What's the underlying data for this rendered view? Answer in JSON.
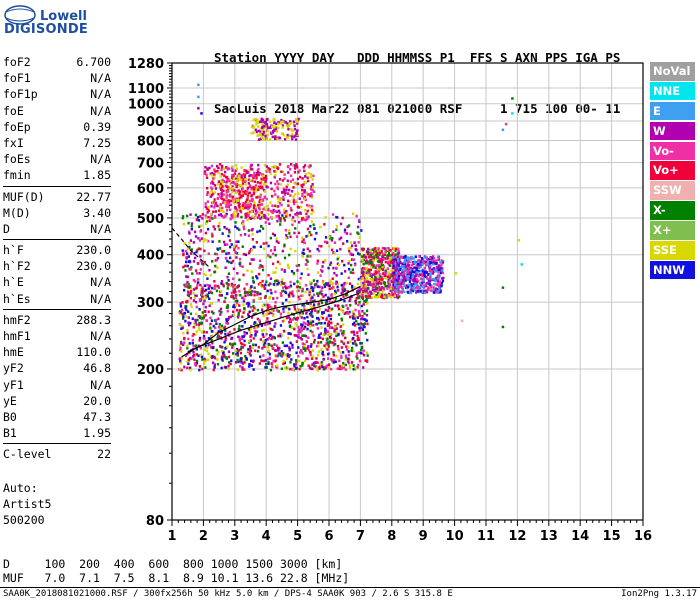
{
  "logo": {
    "line1": "Lowell",
    "line2": "DIGISONDE"
  },
  "header": {
    "row1": "Station YYYY DAY   DDD HHMMSS P1  FFS S AXN PPS IGA PS",
    "row2": "SaoLuis 2018 Mar22 081 021000 RSF     1 715 100 00- 11"
  },
  "params": [
    [
      {
        "name": "foF2",
        "value": "6.700"
      },
      {
        "name": "foF1",
        "value": "N/A"
      },
      {
        "name": "foF1p",
        "value": "N/A"
      },
      {
        "name": "foE",
        "value": "N/A"
      },
      {
        "name": "foEp",
        "value": "0.39"
      },
      {
        "name": "fxI",
        "value": "7.25"
      },
      {
        "name": "foEs",
        "value": "N/A"
      },
      {
        "name": "fmin",
        "value": "1.85"
      }
    ],
    [
      {
        "name": "MUF(D)",
        "value": "22.77"
      },
      {
        "name": "M(D)",
        "value": "3.40"
      },
      {
        "name": "D",
        "value": "N/A"
      }
    ],
    [
      {
        "name": "h`F",
        "value": "230.0"
      },
      {
        "name": "h`F2",
        "value": "230.0"
      },
      {
        "name": "h`E",
        "value": "N/A"
      },
      {
        "name": "h`Es",
        "value": "N/A"
      }
    ],
    [
      {
        "name": "hmF2",
        "value": "288.3"
      },
      {
        "name": "hmF1",
        "value": "N/A"
      },
      {
        "name": "hmE",
        "value": "110.0"
      },
      {
        "name": "yF2",
        "value": "46.8"
      },
      {
        "name": "yF1",
        "value": "N/A"
      },
      {
        "name": "yE",
        "value": "20.0"
      },
      {
        "name": "B0",
        "value": "47.3"
      },
      {
        "name": "B1",
        "value": "1.95"
      }
    ],
    [
      {
        "name": "C-level",
        "value": "22"
      }
    ]
  ],
  "auto": {
    "l1": "Auto:",
    "l2": "Artist5",
    "l3": "500200"
  },
  "legend": [
    {
      "label": "NoVal",
      "color": "#a0a0a0"
    },
    {
      "label": "NNE",
      "color": "#00e6ef"
    },
    {
      "label": "E",
      "color": "#3f9ff0"
    },
    {
      "label": "W",
      "color": "#b000b0"
    },
    {
      "label": "Vo-",
      "color": "#ef2fa6"
    },
    {
      "label": "Vo+",
      "color": "#f0003a"
    },
    {
      "label": "SSW",
      "color": "#f0b0b0"
    },
    {
      "label": "X-",
      "color": "#008000"
    },
    {
      "label": "X+",
      "color": "#7fbf4f"
    },
    {
      "label": "SSE",
      "color": "#d8d800"
    },
    {
      "label": "NNW",
      "color": "#1010e0"
    }
  ],
  "footer": {
    "drow": "D     100  200  400  600  800 1000 1500 3000 [km]",
    "mufrow": "MUF   7.0  7.1  7.5  8.1  8.9 10.1 13.6 22.8 [MHz]",
    "source": "SAA0K_2018081021000.RSF / 300fx256h 50 kHz 5.0 km / DPS-4 SAA0K 903 / 2.6 S 315.8 E",
    "version": "Ion2Png 1.3.17"
  },
  "chart_data": {
    "type": "scatter",
    "title": "",
    "xlabel": "",
    "ylabel": "",
    "xscale": "linear",
    "yscale": "log",
    "xlim": [
      1,
      16
    ],
    "ylim": [
      80,
      1280
    ],
    "xticks": [
      1,
      2,
      3,
      4,
      5,
      6,
      7,
      8,
      9,
      10,
      11,
      12,
      13,
      14,
      15,
      16
    ],
    "yticks": [
      80,
      200,
      300,
      400,
      500,
      600,
      700,
      800,
      900,
      1000,
      1100,
      1280
    ],
    "grid": true,
    "legend_position": "right",
    "traces": [
      {
        "x": [
          1.3,
          1.8,
          2.5,
          3.2,
          4.0,
          4.8,
          5.6,
          6.4,
          7.0
        ],
        "y": [
          215,
          228,
          240,
          253,
          265,
          278,
          290,
          304,
          318
        ]
      },
      {
        "x": [
          1.5,
          2.0,
          2.5,
          3.0,
          3.5,
          4.0,
          4.5,
          5.0,
          5.5,
          6.0,
          6.5,
          7.0
        ],
        "y": [
          222,
          232,
          250,
          262,
          275,
          285,
          292,
          296,
          300,
          305,
          315,
          330
        ]
      },
      {
        "x": [
          1.0,
          1.3,
          1.6,
          1.9,
          2.2
        ],
        "y": [
          470,
          440,
          410,
          390,
          370
        ]
      }
    ],
    "echo_regions": [
      {
        "x": [
          1.2,
          7.2
        ],
        "y": [
          200,
          340
        ],
        "density": "high",
        "colors": [
          "#f0003a",
          "#d8d800",
          "#b000b0",
          "#ef2fa6",
          "#008000",
          "#1010e0"
        ]
      },
      {
        "x": [
          1.3,
          7.0
        ],
        "y": [
          330,
          520
        ],
        "density": "medium",
        "colors": [
          "#b000b0",
          "#d8d800",
          "#f0003a",
          "#008000",
          "#ef2fa6",
          "#1010e0"
        ]
      },
      {
        "x": [
          2.0,
          5.5
        ],
        "y": [
          500,
          700
        ],
        "density": "medium",
        "colors": [
          "#b000b0",
          "#ef2fa6",
          "#f0003a",
          "#d8d800"
        ]
      },
      {
        "x": [
          7.0,
          8.2
        ],
        "y": [
          310,
          420
        ],
        "density": "medium",
        "colors": [
          "#b000b0",
          "#f0003a",
          "#ef2fa6",
          "#d8d800",
          "#008000"
        ]
      },
      {
        "x": [
          8.0,
          9.6
        ],
        "y": [
          320,
          400
        ],
        "density": "medium",
        "colors": [
          "#b000b0",
          "#ef2fa6",
          "#1010e0",
          "#3f9ff0"
        ]
      },
      {
        "x": [
          3.5,
          5.0
        ],
        "y": [
          810,
          920
        ],
        "density": "low",
        "colors": [
          "#d8d800",
          "#b000b0"
        ]
      },
      {
        "x": [
          2.5,
          4.0
        ],
        "y": [
          520,
          660
        ],
        "density": "low",
        "colors": [
          "#f0003a",
          "#ef2fa6",
          "#d8d800"
        ]
      }
    ],
    "isolated_points": [
      {
        "x": 11.5,
        "y": 860,
        "color": "#3f9ff0"
      },
      {
        "x": 11.8,
        "y": 1040,
        "color": "#008000"
      },
      {
        "x": 11.8,
        "y": 950,
        "color": "#00e6ef"
      },
      {
        "x": 11.6,
        "y": 890,
        "color": "#ef2fa6"
      },
      {
        "x": 11.5,
        "y": 330,
        "color": "#008000"
      },
      {
        "x": 11.5,
        "y": 260,
        "color": "#008000"
      },
      {
        "x": 12.1,
        "y": 380,
        "color": "#00e6ef"
      },
      {
        "x": 12.0,
        "y": 440,
        "color": "#d8d800"
      },
      {
        "x": 1.8,
        "y": 1130,
        "color": "#3f9ff0"
      },
      {
        "x": 1.8,
        "y": 1050,
        "color": "#3f9ff0"
      },
      {
        "x": 1.8,
        "y": 980,
        "color": "#b000b0"
      },
      {
        "x": 1.9,
        "y": 950,
        "color": "#1010e0"
      },
      {
        "x": 10.2,
        "y": 270,
        "color": "#f0b0b0"
      },
      {
        "x": 9.6,
        "y": 350,
        "color": "#b000b0"
      },
      {
        "x": 10.0,
        "y": 360,
        "color": "#d8d800"
      }
    ]
  }
}
